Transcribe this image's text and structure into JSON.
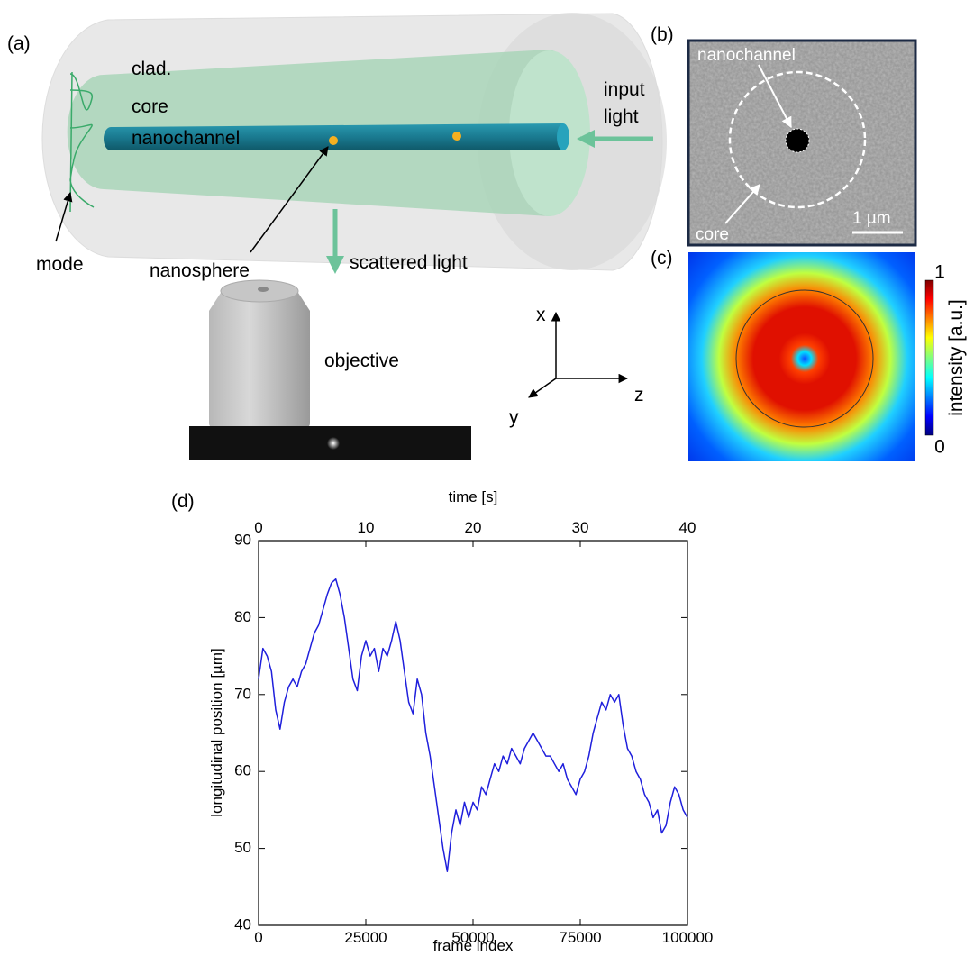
{
  "panel_a": {
    "label": "(a)",
    "clad": "clad.",
    "core": "core",
    "nanochannel": "nanochannel",
    "input_light": [
      "input",
      "light"
    ],
    "mode": "mode",
    "nanosphere": "nanosphere",
    "scattered_light": "scattered light",
    "objective": "objective",
    "axes": {
      "x": "x",
      "y": "y",
      "z": "z"
    }
  },
  "panel_b": {
    "label": "(b)",
    "nanochannel": "nanochannel",
    "core": "core",
    "scale_bar": "1 µm"
  },
  "panel_c": {
    "label": "(c)",
    "colorbar": {
      "label": "intensity [a.u.]",
      "ticks": [
        0,
        1
      ],
      "lim": [
        0,
        1
      ]
    }
  },
  "chart_data": {
    "type": "line",
    "panel_label": "(d)",
    "xlabel": "frame index",
    "ylabel": "longitudinal position [µm]",
    "x2label": "time [s]",
    "color": "#1f1fdc",
    "xlim": [
      0,
      100000
    ],
    "xticks": [
      0,
      25000,
      50000,
      75000,
      100000
    ],
    "x2lim": [
      0,
      40
    ],
    "x2ticks": [
      0,
      10,
      20,
      30,
      40
    ],
    "ylim": [
      40,
      90
    ],
    "yticks": [
      40,
      50,
      60,
      70,
      80,
      90
    ],
    "x": [
      0,
      1000,
      2000,
      3000,
      4000,
      5000,
      6000,
      7000,
      8000,
      9000,
      10000,
      11000,
      12000,
      13000,
      14000,
      15000,
      16000,
      17000,
      18000,
      19000,
      20000,
      21000,
      22000,
      23000,
      24000,
      25000,
      26000,
      27000,
      28000,
      29000,
      30000,
      31000,
      32000,
      33000,
      34000,
      35000,
      36000,
      37000,
      38000,
      39000,
      40000,
      41000,
      42000,
      43000,
      44000,
      45000,
      46000,
      47000,
      48000,
      49000,
      50000,
      51000,
      52000,
      53000,
      54000,
      55000,
      56000,
      57000,
      58000,
      59000,
      60000,
      61000,
      62000,
      63000,
      64000,
      65000,
      66000,
      67000,
      68000,
      69000,
      70000,
      71000,
      72000,
      73000,
      74000,
      75000,
      76000,
      77000,
      78000,
      79000,
      80000,
      81000,
      82000,
      83000,
      84000,
      85000,
      86000,
      87000,
      88000,
      89000,
      90000,
      91000,
      92000,
      93000,
      94000,
      95000,
      96000,
      97000,
      98000,
      99000,
      100000
    ],
    "values": [
      72,
      76,
      75,
      73,
      68,
      65.5,
      69,
      71,
      72,
      71,
      73,
      74,
      76,
      78,
      79,
      81,
      83,
      84.5,
      85,
      83,
      80,
      76,
      72,
      70.5,
      75,
      77,
      75,
      76,
      73,
      76,
      75,
      77,
      79.5,
      77,
      73,
      69,
      67.5,
      72,
      70,
      65,
      62,
      58,
      54,
      50,
      47,
      52,
      55,
      53,
      56,
      54,
      56,
      55,
      58,
      57,
      59,
      61,
      60,
      62,
      61,
      63,
      62,
      61,
      63,
      64,
      65,
      64,
      63,
      62,
      62,
      61,
      60,
      61,
      59,
      58,
      57,
      59,
      60,
      62,
      65,
      67,
      69,
      68,
      70,
      69,
      70,
      66,
      63,
      62,
      60,
      59,
      57,
      56,
      54,
      55,
      52,
      53,
      56,
      58,
      57,
      55,
      54
    ]
  }
}
